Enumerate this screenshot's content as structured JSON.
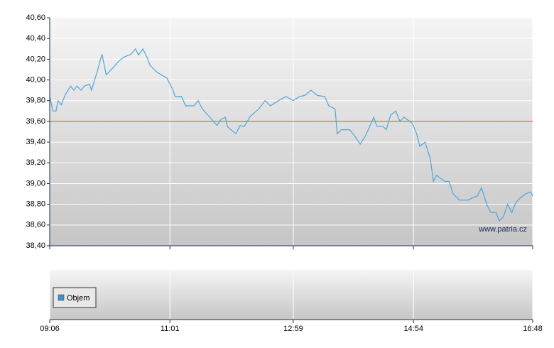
{
  "chart_data": {
    "type": "line",
    "x": [
      "09:06",
      "09:09",
      "09:12",
      "09:14",
      "09:17",
      "09:21",
      "09:26",
      "09:29",
      "09:32",
      "09:36",
      "09:39",
      "09:44",
      "09:46",
      "09:49",
      "09:52",
      "09:56",
      "10:00",
      "10:05",
      "10:12",
      "10:17",
      "10:24",
      "10:28",
      "10:31",
      "10:35",
      "10:39",
      "10:42",
      "10:48",
      "10:51",
      "10:58",
      "11:04",
      "11:06",
      "11:12",
      "11:16",
      "11:24",
      "11:28",
      "11:32",
      "11:40",
      "11:46",
      "11:50",
      "11:54",
      "11:56",
      "12:04",
      "12:08",
      "12:12",
      "12:18",
      "12:26",
      "12:32",
      "12:37",
      "12:45",
      "12:52",
      "12:59",
      "13:05",
      "13:10",
      "13:16",
      "13:22",
      "13:29",
      "13:33",
      "13:39",
      "13:41",
      "13:45",
      "13:53",
      "13:57",
      "14:03",
      "14:08",
      "14:12",
      "14:16",
      "14:19",
      "14:25",
      "14:28",
      "14:32",
      "14:37",
      "14:41",
      "14:45",
      "14:53",
      "14:57",
      "15:00",
      "15:05",
      "15:10",
      "15:13",
      "15:16",
      "15:24",
      "15:28",
      "15:32",
      "15:38",
      "15:46",
      "15:50",
      "15:55",
      "15:59",
      "16:04",
      "16:08",
      "16:13",
      "16:16",
      "16:20",
      "16:24",
      "16:28",
      "16:32",
      "16:36",
      "16:41",
      "16:46",
      "16:48"
    ],
    "series": [
      {
        "color": "#4da6d8",
        "values": [
          39.84,
          39.7,
          39.7,
          39.8,
          39.76,
          39.86,
          39.94,
          39.9,
          39.94,
          39.9,
          39.94,
          39.96,
          39.9,
          40.0,
          40.1,
          40.25,
          40.05,
          40.1,
          40.18,
          40.22,
          40.25,
          40.3,
          40.24,
          40.3,
          40.22,
          40.14,
          40.08,
          40.06,
          40.02,
          39.9,
          39.84,
          39.84,
          39.75,
          39.75,
          39.8,
          39.72,
          39.63,
          39.56,
          39.62,
          39.64,
          39.55,
          39.48,
          39.56,
          39.55,
          39.65,
          39.72,
          39.8,
          39.75,
          39.8,
          39.84,
          39.8,
          39.84,
          39.85,
          39.9,
          39.85,
          39.84,
          39.75,
          39.72,
          39.48,
          39.52,
          39.52,
          39.47,
          39.38,
          39.46,
          39.55,
          39.64,
          39.55,
          39.55,
          39.52,
          39.66,
          39.7,
          39.6,
          39.64,
          39.58,
          39.48,
          39.36,
          39.4,
          39.24,
          39.02,
          39.08,
          39.02,
          39.02,
          38.9,
          38.84,
          38.84,
          38.86,
          38.88,
          38.96,
          38.8,
          38.72,
          38.72,
          38.64,
          38.68,
          38.8,
          38.72,
          38.82,
          38.86,
          38.9,
          38.92,
          38.88
        ]
      }
    ],
    "reference_line": {
      "value": 39.6,
      "color": "#e8766a"
    },
    "xlim": [
      "09:06",
      "16:48"
    ],
    "xticks": [
      "09:06",
      "11:01",
      "12:59",
      "14:54",
      "16:48"
    ],
    "ylim": [
      38.4,
      40.6
    ],
    "yticks": [
      {
        "value": 38.4,
        "label": "38,40"
      },
      {
        "value": 38.6,
        "label": "38,60"
      },
      {
        "value": 38.8,
        "label": "38,80"
      },
      {
        "value": 39.0,
        "label": "39,00"
      },
      {
        "value": 39.2,
        "label": "39,20"
      },
      {
        "value": 39.4,
        "label": "39,40"
      },
      {
        "value": 39.6,
        "label": "39,60"
      },
      {
        "value": 39.8,
        "label": "39,80"
      },
      {
        "value": 40.0,
        "label": "40,00"
      },
      {
        "value": 40.2,
        "label": "40,20"
      },
      {
        "value": 40.4,
        "label": "40,40"
      },
      {
        "value": 40.6,
        "label": "40,60"
      }
    ],
    "grid": true,
    "watermark": "www.patria.cz",
    "volume_legend": {
      "name": "Objem",
      "color": "#3a96d0"
    }
  }
}
